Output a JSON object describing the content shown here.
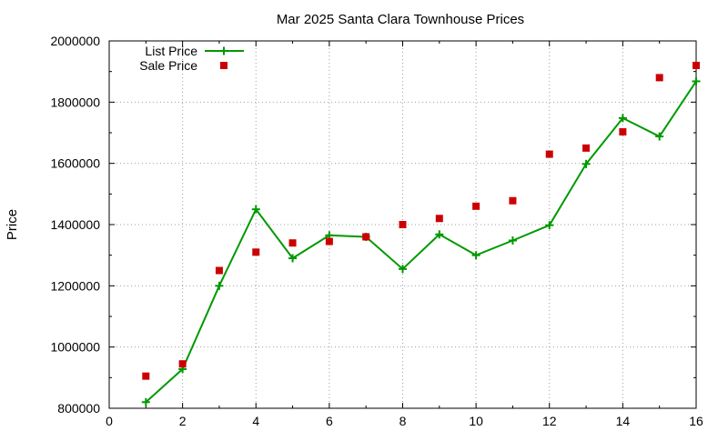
{
  "chart_data": {
    "type": "line",
    "title": "Mar 2025 Santa Clara Townhouse Prices",
    "xlabel": "",
    "ylabel": "Price",
    "xlim": [
      0,
      16
    ],
    "ylim": [
      800000,
      2000000
    ],
    "x_ticks": [
      0,
      2,
      4,
      6,
      8,
      10,
      12,
      14,
      16
    ],
    "y_ticks": [
      800000,
      1000000,
      1200000,
      1400000,
      1600000,
      1800000,
      2000000
    ],
    "x_tick_labels": [
      "0",
      "2",
      "4",
      "6",
      "8",
      "10",
      "12",
      "14",
      "16"
    ],
    "y_tick_labels": [
      "800000",
      "1000000",
      "1200000",
      "1400000",
      "1600000",
      "1800000",
      "2000000"
    ],
    "grid": true,
    "legend_position": "top-left",
    "series": [
      {
        "name": "List Price",
        "style": "line-points",
        "marker": "plus",
        "color": "#009900",
        "x": [
          1,
          2,
          3,
          4,
          5,
          6,
          7,
          8,
          9,
          10,
          11,
          12,
          13,
          14,
          15,
          16
        ],
        "values": [
          820000,
          928000,
          1200000,
          1450000,
          1290000,
          1365000,
          1360000,
          1255000,
          1368000,
          1300000,
          1348000,
          1398000,
          1598000,
          1748000,
          1688000,
          1868000
        ]
      },
      {
        "name": "Sale Price",
        "style": "points",
        "marker": "square",
        "color": "#cc0000",
        "x": [
          1,
          2,
          3,
          4,
          5,
          6,
          7,
          8,
          9,
          10,
          11,
          12,
          13,
          14,
          15,
          16
        ],
        "values": [
          905000,
          945000,
          1250000,
          1310000,
          1340000,
          1345000,
          1360000,
          1400000,
          1420000,
          1460000,
          1478000,
          1630000,
          1650000,
          1703000,
          1880000,
          1920000
        ]
      }
    ]
  }
}
